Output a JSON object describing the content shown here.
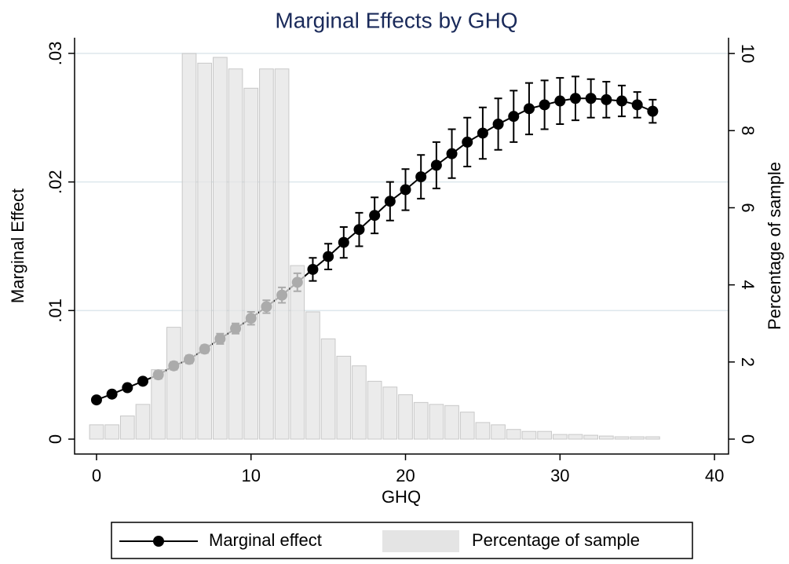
{
  "chart_data": {
    "type": "combo",
    "title": "Marginal Effects by GHQ",
    "x_label": "GHQ",
    "y_label": "Marginal Effect",
    "y2_label": "Percentage of sample",
    "xlim": [
      -1.42,
      40.91
    ],
    "xticks": [
      0,
      10,
      20,
      30,
      40
    ],
    "ylim": [
      -0.00116,
      0.03122
    ],
    "yticks": [
      0,
      {
        "value": 0.01,
        "label": ".01"
      },
      {
        "value": 0.02,
        "label": ".02"
      },
      {
        "value": 0.03,
        "label": ".03"
      }
    ],
    "y2lim": [
      -0.387,
      10.41
    ],
    "y2ticks": [
      0,
      2,
      4,
      6,
      8,
      10
    ],
    "grid": true,
    "legend": "bottom",
    "series": [
      {
        "name": "Marginal effect",
        "type": "line",
        "color": "#000000",
        "x": [
          0,
          1,
          2,
          3,
          4,
          5,
          6,
          7,
          8,
          9,
          10,
          11,
          12,
          13,
          14,
          15,
          16,
          17,
          18,
          19,
          20,
          21,
          22,
          23,
          24,
          25,
          26,
          27,
          28,
          29,
          30,
          31,
          32,
          33,
          34,
          35,
          36
        ],
        "values": [
          0.00305,
          0.0035,
          0.004,
          0.0045,
          0.005,
          0.0057,
          0.0062,
          0.007,
          0.0078,
          0.0086,
          0.0094,
          0.0103,
          0.0112,
          0.0122,
          0.0132,
          0.0142,
          0.0153,
          0.0163,
          0.0174,
          0.0185,
          0.0194,
          0.0204,
          0.0213,
          0.0222,
          0.0231,
          0.0238,
          0.0245,
          0.0251,
          0.0257,
          0.026,
          0.0263,
          0.0265,
          0.0265,
          0.0264,
          0.0263,
          0.026,
          0.0255
        ],
        "errors": [
          0.0002,
          0.0002,
          0.0002,
          0.0002,
          0.0003,
          0.0003,
          0.0003,
          0.0003,
          0.0004,
          0.0004,
          0.0005,
          0.0005,
          0.0006,
          0.0007,
          0.0009,
          0.001,
          0.0012,
          0.0013,
          0.0014,
          0.0015,
          0.0016,
          0.0017,
          0.0018,
          0.0019,
          0.0019,
          0.002,
          0.002,
          0.002,
          0.002,
          0.0019,
          0.0018,
          0.0017,
          0.0015,
          0.0014,
          0.0012,
          0.001,
          0.0009
        ]
      },
      {
        "name": "Percentage of sample",
        "type": "histogram",
        "axis": "y2",
        "color": "#e4e4e4",
        "bins": [
          -0.5,
          0.5,
          1.5,
          2.5,
          3.5,
          4.5,
          5.5,
          6.5,
          7.5,
          8.5,
          9.5,
          10.5,
          11.5,
          12.5,
          13.5,
          14.5,
          15.5,
          16.5,
          17.5,
          18.5,
          19.5,
          20.5,
          21.5,
          22.5,
          23.5,
          24.5,
          25.5,
          26.5,
          27.5,
          28.5,
          29.5,
          30.5,
          31.5,
          32.5,
          33.5,
          34.5,
          35.5,
          36.5
        ],
        "values": [
          0.37,
          0.37,
          0.6,
          0.9,
          1.8,
          2.9,
          10.0,
          9.75,
          9.9,
          9.6,
          9.1,
          9.6,
          9.6,
          4.5,
          3.3,
          2.6,
          2.15,
          1.9,
          1.5,
          1.35,
          1.15,
          0.95,
          0.9,
          0.87,
          0.7,
          0.43,
          0.37,
          0.25,
          0.2,
          0.2,
          0.12,
          0.12,
          0.1,
          0.08,
          0.06,
          0.06,
          0.06
        ]
      }
    ]
  }
}
